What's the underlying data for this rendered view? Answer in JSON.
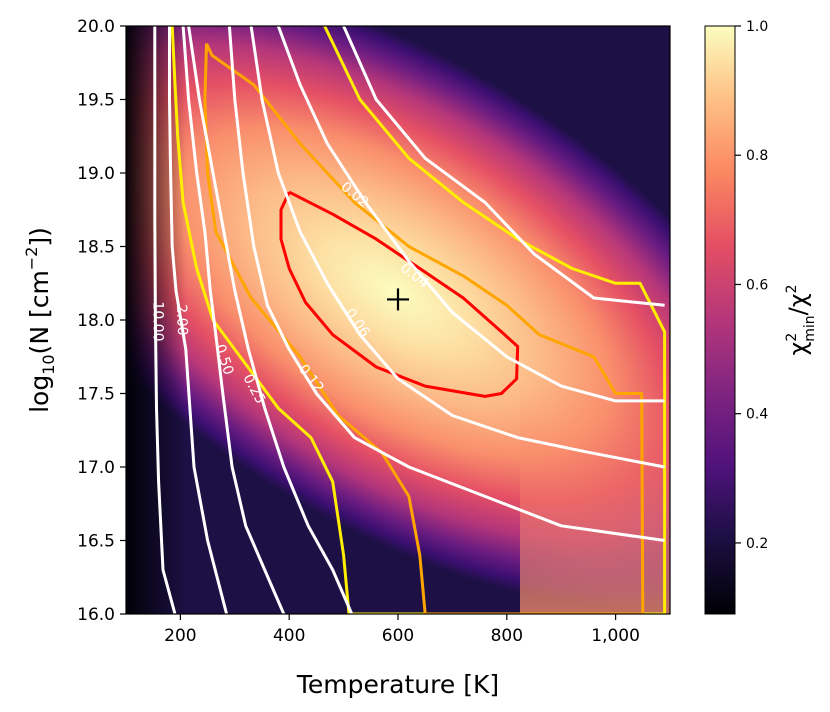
{
  "chart_data": {
    "type": "heatmap",
    "title": "",
    "xlabel": "Temperature [K]",
    "ylabel_base": "log",
    "ylabel_sub": "10",
    "ylabel_rest": "(N [cm",
    "ylabel_sup": "−2",
    "ylabel_end": "])",
    "xlim": [
      100,
      1100
    ],
    "ylim": [
      16.0,
      20.0
    ],
    "xticks": [
      {
        "value": 200,
        "label": "200"
      },
      {
        "value": 400,
        "label": "400"
      },
      {
        "value": 600,
        "label": "600"
      },
      {
        "value": 800,
        "label": "800"
      },
      {
        "value": 1000,
        "label": "1,000"
      }
    ],
    "yticks": [
      {
        "value": 16.0,
        "label": "16.0"
      },
      {
        "value": 16.5,
        "label": "16.5"
      },
      {
        "value": 17.0,
        "label": "17.0"
      },
      {
        "value": 17.5,
        "label": "17.5"
      },
      {
        "value": 18.0,
        "label": "18.0"
      },
      {
        "value": 18.5,
        "label": "18.5"
      },
      {
        "value": 19.0,
        "label": "19.0"
      },
      {
        "value": 19.5,
        "label": "19.5"
      },
      {
        "value": 20.0,
        "label": "20.0"
      }
    ],
    "best_fit": {
      "T": 600,
      "logN": 18.14,
      "marker": "+"
    },
    "colormap": "magma",
    "colorbar": {
      "label_main": "χ",
      "label_sup": "2",
      "label_sub": "min",
      "label_rest": "/χ",
      "label_sup2": "2",
      "range": [
        0.09,
        1.0
      ],
      "ticks": [
        {
          "value": 0.2,
          "label": "0.2"
        },
        {
          "value": 0.4,
          "label": "0.4"
        },
        {
          "value": 0.6,
          "label": "0.6"
        },
        {
          "value": 0.8,
          "label": "0.8"
        },
        {
          "value": 1.0,
          "label": "1.0"
        }
      ]
    },
    "white_contours": [
      {
        "label": "0.02",
        "label_at": [
          520,
          18.85
        ],
        "label_angle": 40,
        "points": [
          [
            500,
            20.0
          ],
          [
            560,
            19.5
          ],
          [
            650,
            19.1
          ],
          [
            760,
            18.8
          ],
          [
            850,
            18.45
          ],
          [
            960,
            18.15
          ],
          [
            1090,
            18.1
          ]
        ]
      },
      {
        "label": "0.04",
        "label_at": [
          630,
          18.3
        ],
        "label_angle": 38,
        "points": [
          [
            380,
            20.0
          ],
          [
            420,
            19.6
          ],
          [
            470,
            19.2
          ],
          [
            540,
            18.8
          ],
          [
            620,
            18.4
          ],
          [
            700,
            18.05
          ],
          [
            800,
            17.75
          ],
          [
            900,
            17.55
          ],
          [
            1000,
            17.45
          ],
          [
            1090,
            17.45
          ]
        ]
      },
      {
        "label": "0.06",
        "label_at": [
          525,
          17.98
        ],
        "label_angle": 55,
        "points": [
          [
            330,
            20.0
          ],
          [
            350,
            19.5
          ],
          [
            380,
            19.0
          ],
          [
            420,
            18.6
          ],
          [
            470,
            18.25
          ],
          [
            530,
            17.9
          ],
          [
            600,
            17.6
          ],
          [
            700,
            17.35
          ],
          [
            820,
            17.2
          ],
          [
            950,
            17.1
          ],
          [
            1090,
            17.0
          ]
        ]
      },
      {
        "label": "0.12",
        "label_at": [
          440,
          17.6
        ],
        "label_angle": 52,
        "points": [
          [
            290,
            20.0
          ],
          [
            300,
            19.5
          ],
          [
            315,
            19.0
          ],
          [
            335,
            18.5
          ],
          [
            360,
            18.1
          ],
          [
            400,
            17.8
          ],
          [
            450,
            17.5
          ],
          [
            520,
            17.2
          ],
          [
            620,
            17.0
          ],
          [
            760,
            16.8
          ],
          [
            900,
            16.6
          ],
          [
            1090,
            16.5
          ]
        ]
      },
      {
        "label": "0.25",
        "label_at": [
          335,
          17.53
        ],
        "label_angle": 62,
        "points": [
          [
            215,
            20.0
          ],
          [
            235,
            19.5
          ],
          [
            260,
            19.0
          ],
          [
            280,
            18.6
          ],
          [
            300,
            18.2
          ],
          [
            325,
            17.8
          ],
          [
            355,
            17.4
          ],
          [
            390,
            17.0
          ],
          [
            435,
            16.6
          ],
          [
            480,
            16.3
          ],
          [
            515,
            16.0
          ]
        ]
      },
      {
        "label": "0.50",
        "label_at": [
          280,
          17.73
        ],
        "label_angle": 72,
        "points": [
          [
            205,
            20.0
          ],
          [
            215,
            19.5
          ],
          [
            230,
            19.0
          ],
          [
            245,
            18.6
          ],
          [
            255,
            18.2
          ],
          [
            265,
            17.9
          ],
          [
            278,
            17.5
          ],
          [
            295,
            17.0
          ],
          [
            320,
            16.6
          ],
          [
            355,
            16.3
          ],
          [
            390,
            16.0
          ]
        ]
      },
      {
        "label": "2.00",
        "label_at": [
          202,
          18.0
        ],
        "label_angle": 88,
        "points": [
          [
            180,
            20.0
          ],
          [
            180,
            19.5
          ],
          [
            182,
            19.0
          ],
          [
            185,
            18.5
          ],
          [
            192,
            18.2
          ],
          [
            210,
            17.8
          ],
          [
            225,
            17.0
          ],
          [
            250,
            16.5
          ],
          [
            285,
            16.0
          ]
        ]
      },
      {
        "label": "10.00",
        "label_at": [
          158,
          17.99
        ],
        "label_angle": 90,
        "points": [
          [
            153,
            20.0
          ],
          [
            153,
            19.4
          ],
          [
            153,
            18.7
          ],
          [
            154,
            18.0
          ],
          [
            156,
            17.4
          ],
          [
            160,
            16.9
          ],
          [
            168,
            16.3
          ],
          [
            190,
            16.0
          ]
        ]
      }
    ],
    "confidence_contours": [
      {
        "name": "inner",
        "color": "#ff0000",
        "points": [
          [
            400,
            18.87
          ],
          [
            480,
            18.72
          ],
          [
            560,
            18.55
          ],
          [
            640,
            18.35
          ],
          [
            720,
            18.15
          ],
          [
            790,
            17.92
          ],
          [
            820,
            17.82
          ],
          [
            818,
            17.6
          ],
          [
            790,
            17.5
          ],
          [
            760,
            17.48
          ],
          [
            650,
            17.55
          ],
          [
            560,
            17.68
          ],
          [
            480,
            17.9
          ],
          [
            430,
            18.12
          ],
          [
            400,
            18.35
          ],
          [
            385,
            18.55
          ],
          [
            385,
            18.75
          ],
          [
            400,
            18.87
          ]
        ]
      },
      {
        "name": "middle",
        "color": "#ffa500",
        "points": [
          [
            248,
            19.88
          ],
          [
            258,
            19.8
          ],
          [
            335,
            19.6
          ],
          [
            420,
            19.2
          ],
          [
            520,
            18.8
          ],
          [
            620,
            18.5
          ],
          [
            720,
            18.3
          ],
          [
            800,
            18.1
          ],
          [
            860,
            17.9
          ],
          [
            960,
            17.75
          ],
          [
            1000,
            17.5
          ],
          [
            1048,
            17.5
          ],
          [
            1050,
            16.0
          ],
          [
            650,
            16.0
          ],
          [
            640,
            16.4
          ],
          [
            620,
            16.8
          ],
          [
            570,
            17.1
          ],
          [
            490,
            17.35
          ],
          [
            420,
            17.75
          ],
          [
            330,
            18.15
          ],
          [
            265,
            18.6
          ],
          [
            250,
            19.0
          ],
          [
            245,
            19.5
          ],
          [
            248,
            19.88
          ]
        ]
      },
      {
        "name": "outer",
        "color": "#ffee00",
        "points": [
          [
            465,
            20.0
          ],
          [
            530,
            19.5
          ],
          [
            620,
            19.1
          ],
          [
            720,
            18.8
          ],
          [
            820,
            18.55
          ],
          [
            920,
            18.35
          ],
          [
            1000,
            18.25
          ],
          [
            1045,
            18.25
          ],
          [
            1090,
            17.92
          ],
          [
            1090,
            16.0
          ],
          [
            510,
            16.0
          ],
          [
            500,
            16.4
          ],
          [
            480,
            16.9
          ],
          [
            440,
            17.2
          ],
          [
            380,
            17.4
          ],
          [
            320,
            17.7
          ],
          [
            260,
            18.0
          ],
          [
            230,
            18.35
          ],
          [
            205,
            18.8
          ],
          [
            195,
            19.25
          ],
          [
            190,
            19.6
          ],
          [
            185,
            20.0
          ]
        ]
      }
    ]
  }
}
